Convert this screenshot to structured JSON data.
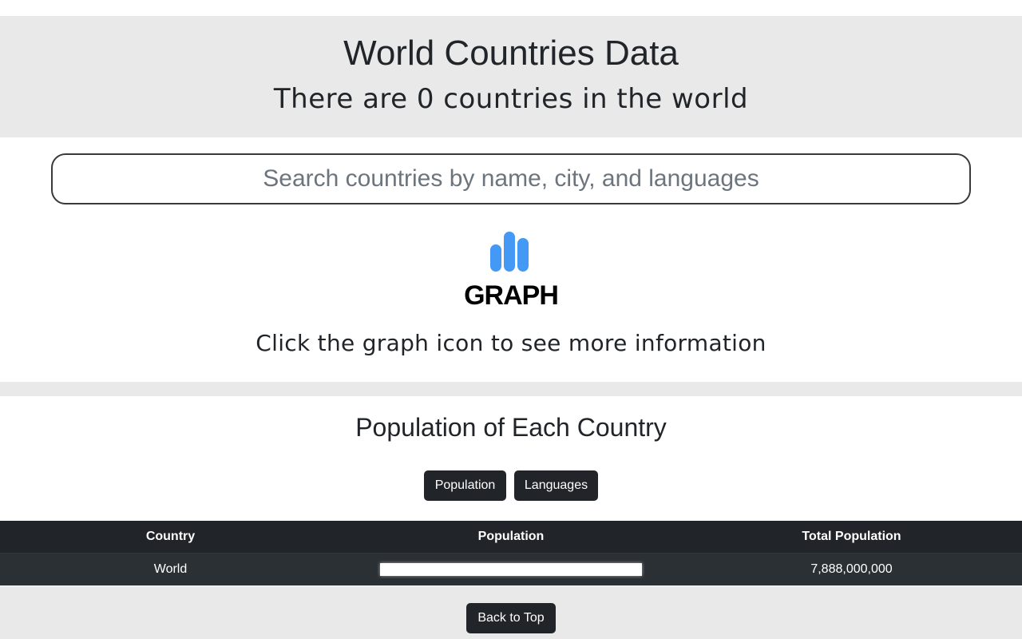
{
  "header": {
    "title": "World Countries Data",
    "subtitle": "There are 0 countries in the world"
  },
  "search": {
    "placeholder": "Search countries by name, city, and languages",
    "value": ""
  },
  "graph_button": {
    "label": "GRAPH",
    "icon": "bar-chart-icon",
    "icon_color": "#4499f5"
  },
  "hint": "Click the graph icon to see more information",
  "section": {
    "title": "Population of Each Country",
    "tabs": [
      {
        "label": "Population"
      },
      {
        "label": "Languages"
      }
    ]
  },
  "table": {
    "headers": [
      "Country",
      "Population",
      "Total Population"
    ],
    "rows": [
      {
        "country": "World",
        "population_fraction": 1.0,
        "total": "7,888,000,000"
      }
    ]
  },
  "footer": {
    "back_label": "Back to Top"
  },
  "colors": {
    "band": "#e9e9e9",
    "dark": "#212529",
    "accent": "#4499f5"
  }
}
